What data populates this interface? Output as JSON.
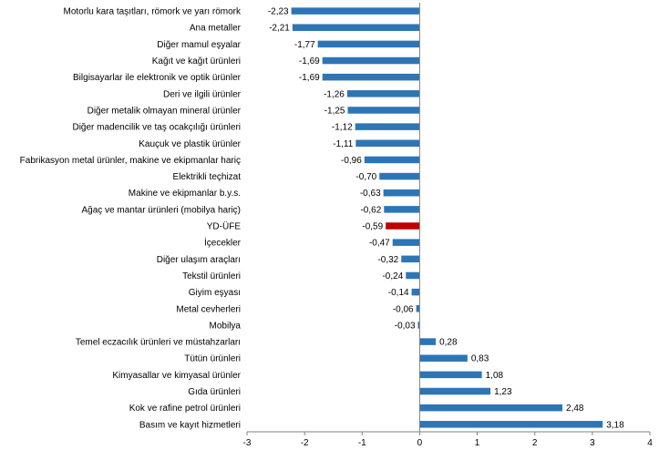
{
  "chart_data": {
    "type": "bar",
    "orientation": "horizontal",
    "categories": [
      "Motorlu kara taşıtları, römork ve yarı römork",
      "Ana metaller",
      "Diğer mamul eşyalar",
      "Kağıt ve kağıt ürünleri",
      "Bilgisayarlar ile elektronik ve optik ürünler",
      "Deri ve ilgili ürünler",
      "Diğer metalik olmayan mineral ürünler",
      "Diğer madencilik ve taş ocakçılığı ürünleri",
      "Kauçuk ve plastik ürünler",
      "Fabrikasyon metal ürünler, makine ve ekipmanlar hariç",
      "Elektrikli teçhizat",
      "Makine ve ekipmanlar b.y.s.",
      "Ağaç ve mantar ürünleri (mobilya hariç)",
      "YD-ÜFE",
      "İçecekler",
      "Diğer ulaşım araçları",
      "Tekstil ürünleri",
      "Giyim eşyası",
      "Metal cevherleri",
      "Mobilya",
      "Temel eczacılık ürünleri ve müstahzarları",
      "Tütün ürünleri",
      "Kimyasallar ve kimyasal ürünler",
      "Gıda ürünleri",
      "Kok ve rafine petrol ürünleri",
      "Basım ve kayıt hizmetleri"
    ],
    "values": [
      -2.23,
      -2.21,
      -1.77,
      -1.69,
      -1.69,
      -1.26,
      -1.25,
      -1.12,
      -1.11,
      -0.96,
      -0.7,
      -0.63,
      -0.62,
      -0.59,
      -0.47,
      -0.32,
      -0.24,
      -0.14,
      -0.06,
      -0.03,
      0.28,
      0.83,
      1.08,
      1.23,
      2.48,
      3.18
    ],
    "value_labels": [
      "-2,23",
      "-2,21",
      "-1,77",
      "-1,69",
      "-1,69",
      "-1,26",
      "-1,25",
      "-1,12",
      "-1,11",
      "-0,96",
      "-0,70",
      "-0,63",
      "-0,62",
      "-0,59",
      "-0,47",
      "-0,32",
      "-0,24",
      "-0,14",
      "-0,06",
      "-0,03",
      "0,28",
      "0,83",
      "1,08",
      "1,23",
      "2,48",
      "3,18"
    ],
    "highlight_index": 13,
    "xlim": [
      -3,
      4
    ],
    "xticks": [
      -3,
      -2,
      -1,
      0,
      1,
      2,
      3,
      4
    ],
    "grid": false,
    "legend": "none",
    "title": "",
    "xlabel": "",
    "ylabel": "",
    "colors": {
      "bar": "#2e75b6",
      "highlight": "#c00000",
      "axis": "#808080"
    }
  }
}
